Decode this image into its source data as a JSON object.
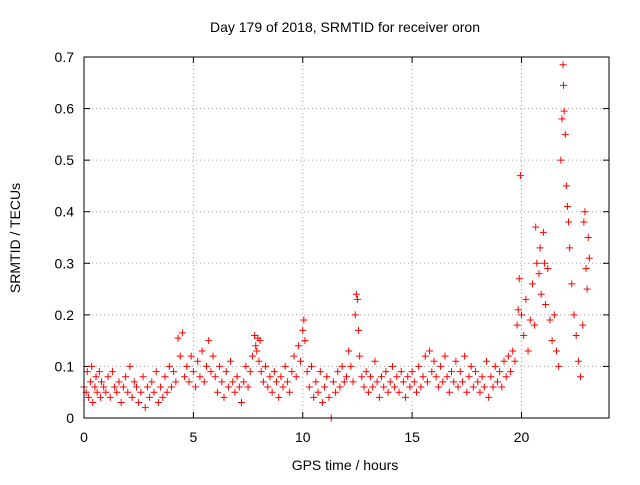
{
  "chart_data": {
    "type": "scatter",
    "title": "Day 179 of 2018, SRMTID for receiver oron",
    "xlabel": "GPS time / hours",
    "ylabel": "SRMTID / TECUs",
    "xlim": [
      0,
      24
    ],
    "ylim": [
      0,
      0.7
    ],
    "x_ticks": [
      0,
      5,
      10,
      15,
      20
    ],
    "x_tick_labels": [
      "0",
      "5",
      "10",
      "15",
      "20"
    ],
    "y_ticks": [
      0,
      0.1,
      0.2,
      0.3,
      0.4,
      0.5,
      0.6,
      0.7
    ],
    "y_tick_labels": [
      "0",
      "0.1",
      "0.2",
      "0.3",
      "0.4",
      "0.5",
      "0.6",
      "0.7"
    ],
    "grid": true,
    "marker": "+",
    "series_color": "#ff0000",
    "series": [
      {
        "name": "oron",
        "points": [
          [
            0.0,
            0.06
          ],
          [
            0.1,
            0.05
          ],
          [
            0.15,
            0.09
          ],
          [
            0.2,
            0.04
          ],
          [
            0.3,
            0.07
          ],
          [
            0.35,
            0.1
          ],
          [
            0.4,
            0.03
          ],
          [
            0.5,
            0.06
          ],
          [
            0.55,
            0.08
          ],
          [
            0.6,
            0.05
          ],
          [
            0.7,
            0.09
          ],
          [
            0.75,
            0.04
          ],
          [
            0.8,
            0.07
          ],
          [
            0.9,
            0.06
          ],
          [
            1.0,
            0.05
          ],
          [
            1.1,
            0.08
          ],
          [
            1.2,
            0.04
          ],
          [
            1.3,
            0.09
          ],
          [
            1.4,
            0.06
          ],
          [
            1.5,
            0.05
          ],
          [
            1.6,
            0.07
          ],
          [
            1.7,
            0.03
          ],
          [
            1.8,
            0.06
          ],
          [
            1.9,
            0.08
          ],
          [
            2.0,
            0.05
          ],
          [
            2.1,
            0.1
          ],
          [
            2.2,
            0.04
          ],
          [
            2.3,
            0.07
          ],
          [
            2.4,
            0.06
          ],
          [
            2.5,
            0.03
          ],
          [
            2.6,
            0.05
          ],
          [
            2.7,
            0.08
          ],
          [
            2.8,
            0.02
          ],
          [
            2.9,
            0.06
          ],
          [
            3.0,
            0.04
          ],
          [
            3.1,
            0.07
          ],
          [
            3.2,
            0.05
          ],
          [
            3.3,
            0.09
          ],
          [
            3.4,
            0.03
          ],
          [
            3.5,
            0.06
          ],
          [
            3.6,
            0.04
          ],
          [
            3.7,
            0.08
          ],
          [
            3.8,
            0.05
          ],
          [
            3.9,
            0.1
          ],
          [
            4.0,
            0.06
          ],
          [
            4.1,
            0.09
          ],
          [
            4.2,
            0.07
          ],
          [
            4.3,
            0.155
          ],
          [
            4.4,
            0.12
          ],
          [
            4.5,
            0.165
          ],
          [
            4.6,
            0.08
          ],
          [
            4.7,
            0.1
          ],
          [
            4.8,
            0.07
          ],
          [
            4.9,
            0.12
          ],
          [
            5.0,
            0.09
          ],
          [
            5.1,
            0.06
          ],
          [
            5.2,
            0.11
          ],
          [
            5.3,
            0.08
          ],
          [
            5.4,
            0.13
          ],
          [
            5.5,
            0.07
          ],
          [
            5.6,
            0.1
          ],
          [
            5.7,
            0.15
          ],
          [
            5.8,
            0.09
          ],
          [
            5.9,
            0.12
          ],
          [
            6.0,
            0.08
          ],
          [
            6.1,
            0.05
          ],
          [
            6.2,
            0.1
          ],
          [
            6.3,
            0.07
          ],
          [
            6.4,
            0.04
          ],
          [
            6.5,
            0.09
          ],
          [
            6.6,
            0.06
          ],
          [
            6.7,
            0.11
          ],
          [
            6.8,
            0.07
          ],
          [
            6.9,
            0.05
          ],
          [
            7.0,
            0.08
          ],
          [
            7.1,
            0.06
          ],
          [
            7.2,
            0.03
          ],
          [
            7.3,
            0.07
          ],
          [
            7.4,
            0.1
          ],
          [
            7.5,
            0.06
          ],
          [
            7.6,
            0.09
          ],
          [
            7.7,
            0.12
          ],
          [
            7.8,
            0.16
          ],
          [
            7.85,
            0.14
          ],
          [
            7.9,
            0.13
          ],
          [
            7.95,
            0.155
          ],
          [
            8.0,
            0.11
          ],
          [
            8.05,
            0.15
          ],
          [
            8.1,
            0.09
          ],
          [
            8.2,
            0.07
          ],
          [
            8.3,
            0.1
          ],
          [
            8.4,
            0.06
          ],
          [
            8.5,
            0.08
          ],
          [
            8.6,
            0.05
          ],
          [
            8.7,
            0.09
          ],
          [
            8.8,
            0.07
          ],
          [
            8.9,
            0.04
          ],
          [
            9.0,
            0.08
          ],
          [
            9.1,
            0.06
          ],
          [
            9.2,
            0.1
          ],
          [
            9.3,
            0.07
          ],
          [
            9.4,
            0.05
          ],
          [
            9.5,
            0.09
          ],
          [
            9.6,
            0.12
          ],
          [
            9.7,
            0.08
          ],
          [
            9.8,
            0.14
          ],
          [
            9.9,
            0.11
          ],
          [
            10.0,
            0.17
          ],
          [
            10.05,
            0.19
          ],
          [
            10.1,
            0.15
          ],
          [
            10.2,
            0.09
          ],
          [
            10.3,
            0.06
          ],
          [
            10.4,
            0.1
          ],
          [
            10.5,
            0.04
          ],
          [
            10.6,
            0.07
          ],
          [
            10.7,
            0.05
          ],
          [
            10.8,
            0.09
          ],
          [
            10.9,
            0.03
          ],
          [
            11.0,
            0.06
          ],
          [
            11.1,
            0.08
          ],
          [
            11.2,
            0.04
          ],
          [
            11.3,
            0.0
          ],
          [
            11.4,
            0.07
          ],
          [
            11.5,
            0.05
          ],
          [
            11.6,
            0.09
          ],
          [
            11.7,
            0.06
          ],
          [
            11.8,
            0.1
          ],
          [
            11.9,
            0.07
          ],
          [
            12.0,
            0.08
          ],
          [
            12.1,
            0.13
          ],
          [
            12.2,
            0.1
          ],
          [
            12.3,
            0.07
          ],
          [
            12.4,
            0.2
          ],
          [
            12.45,
            0.24
          ],
          [
            12.5,
            0.23
          ],
          [
            12.55,
            0.17
          ],
          [
            12.6,
            0.12
          ],
          [
            12.7,
            0.08
          ],
          [
            12.8,
            0.06
          ],
          [
            12.9,
            0.09
          ],
          [
            13.0,
            0.05
          ],
          [
            13.1,
            0.08
          ],
          [
            13.2,
            0.06
          ],
          [
            13.3,
            0.11
          ],
          [
            13.4,
            0.07
          ],
          [
            13.5,
            0.04
          ],
          [
            13.6,
            0.08
          ],
          [
            13.7,
            0.06
          ],
          [
            13.8,
            0.09
          ],
          [
            13.9,
            0.05
          ],
          [
            14.0,
            0.07
          ],
          [
            14.1,
            0.1
          ],
          [
            14.2,
            0.06
          ],
          [
            14.3,
            0.08
          ],
          [
            14.4,
            0.05
          ],
          [
            14.5,
            0.09
          ],
          [
            14.6,
            0.07
          ],
          [
            14.7,
            0.04
          ],
          [
            14.8,
            0.08
          ],
          [
            14.9,
            0.06
          ],
          [
            15.0,
            0.09
          ],
          [
            15.1,
            0.07
          ],
          [
            15.2,
            0.05
          ],
          [
            15.3,
            0.1
          ],
          [
            15.4,
            0.06
          ],
          [
            15.5,
            0.08
          ],
          [
            15.6,
            0.12
          ],
          [
            15.7,
            0.07
          ],
          [
            15.8,
            0.13
          ],
          [
            15.9,
            0.09
          ],
          [
            16.0,
            0.11
          ],
          [
            16.1,
            0.08
          ],
          [
            16.2,
            0.06
          ],
          [
            16.3,
            0.1
          ],
          [
            16.4,
            0.07
          ],
          [
            16.5,
            0.12
          ],
          [
            16.6,
            0.08
          ],
          [
            16.7,
            0.05
          ],
          [
            16.8,
            0.09
          ],
          [
            16.9,
            0.07
          ],
          [
            17.0,
            0.11
          ],
          [
            17.1,
            0.06
          ],
          [
            17.2,
            0.09
          ],
          [
            17.3,
            0.07
          ],
          [
            17.4,
            0.12
          ],
          [
            17.5,
            0.05
          ],
          [
            17.6,
            0.08
          ],
          [
            17.7,
            0.1
          ],
          [
            17.8,
            0.06
          ],
          [
            17.9,
            0.09
          ],
          [
            18.0,
            0.07
          ],
          [
            18.1,
            0.05
          ],
          [
            18.2,
            0.08
          ],
          [
            18.3,
            0.06
          ],
          [
            18.4,
            0.11
          ],
          [
            18.5,
            0.04
          ],
          [
            18.6,
            0.08
          ],
          [
            18.7,
            0.06
          ],
          [
            18.8,
            0.1
          ],
          [
            18.9,
            0.07
          ],
          [
            19.0,
            0.09
          ],
          [
            19.1,
            0.06
          ],
          [
            19.2,
            0.11
          ],
          [
            19.3,
            0.08
          ],
          [
            19.4,
            0.12
          ],
          [
            19.5,
            0.09
          ],
          [
            19.6,
            0.13
          ],
          [
            19.7,
            0.11
          ],
          [
            19.8,
            0.18
          ],
          [
            19.85,
            0.21
          ],
          [
            19.9,
            0.27
          ],
          [
            19.95,
            0.47
          ],
          [
            20.0,
            0.2
          ],
          [
            20.1,
            0.16
          ],
          [
            20.2,
            0.23
          ],
          [
            20.3,
            0.13
          ],
          [
            20.4,
            0.19
          ],
          [
            20.5,
            0.26
          ],
          [
            20.6,
            0.18
          ],
          [
            20.65,
            0.37
          ],
          [
            20.7,
            0.3
          ],
          [
            20.8,
            0.28
          ],
          [
            20.85,
            0.33
          ],
          [
            20.9,
            0.24
          ],
          [
            21.0,
            0.36
          ],
          [
            21.05,
            0.3
          ],
          [
            21.1,
            0.22
          ],
          [
            21.2,
            0.29
          ],
          [
            21.3,
            0.19
          ],
          [
            21.4,
            0.15
          ],
          [
            21.5,
            0.2
          ],
          [
            21.6,
            0.13
          ],
          [
            21.7,
            0.1
          ],
          [
            21.8,
            0.5
          ],
          [
            21.85,
            0.58
          ],
          [
            21.9,
            0.685
          ],
          [
            21.92,
            0.645
          ],
          [
            21.95,
            0.595
          ],
          [
            22.0,
            0.55
          ],
          [
            22.05,
            0.45
          ],
          [
            22.1,
            0.41
          ],
          [
            22.15,
            0.38
          ],
          [
            22.2,
            0.33
          ],
          [
            22.3,
            0.26
          ],
          [
            22.4,
            0.2
          ],
          [
            22.5,
            0.16
          ],
          [
            22.6,
            0.11
          ],
          [
            22.7,
            0.08
          ],
          [
            22.8,
            0.18
          ],
          [
            22.85,
            0.38
          ],
          [
            22.9,
            0.4
          ],
          [
            22.95,
            0.29
          ],
          [
            23.0,
            0.25
          ],
          [
            23.05,
            0.35
          ],
          [
            23.1,
            0.31
          ]
        ]
      }
    ]
  }
}
